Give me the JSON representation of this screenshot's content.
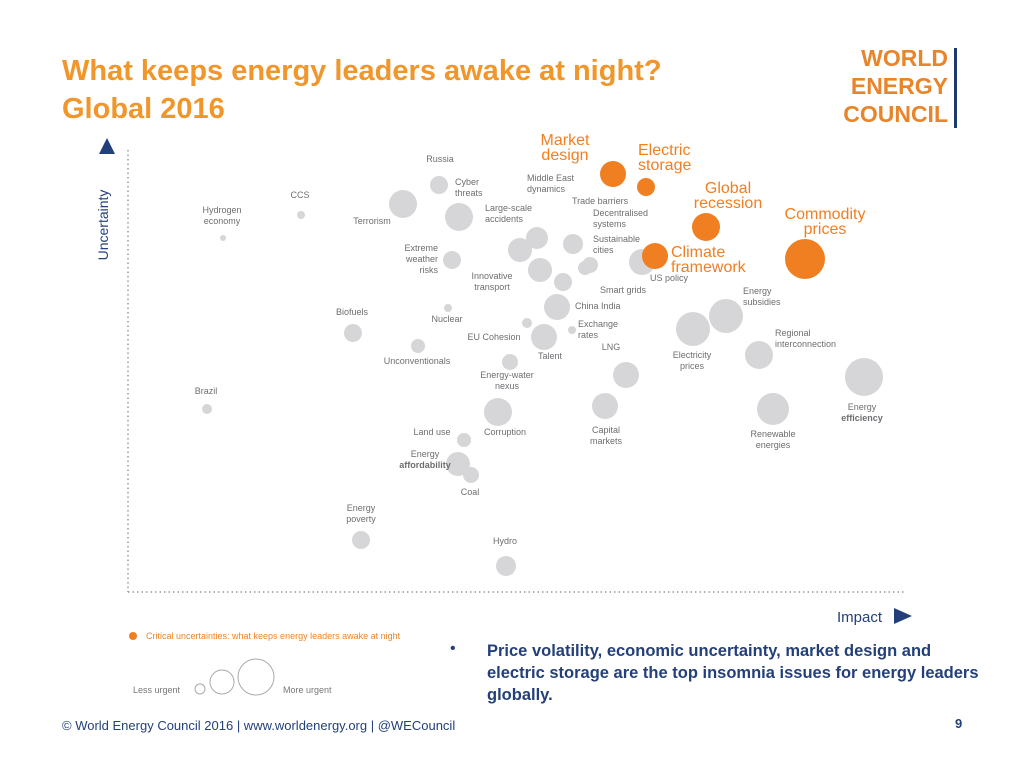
{
  "header": {
    "title_lines": [
      "What keeps energy leaders awake at night?",
      "Global 2016"
    ]
  },
  "logo": [
    "WORLD",
    "ENERGY",
    "COUNCIL"
  ],
  "axes": {
    "y": "Uncertainty",
    "x": "Impact"
  },
  "issues": [
    {
      "label": [
        "Russia"
      ]
    },
    {
      "label": [
        "Cyber",
        "threats"
      ]
    },
    {
      "label": [
        "CCS"
      ]
    },
    {
      "label": [
        "Hydrogen",
        "economy"
      ]
    },
    {
      "label": [
        "Terrorism"
      ]
    },
    {
      "label": [
        "Middle East",
        "dynamics"
      ]
    },
    {
      "label": [
        "Large-scale",
        "accidents"
      ]
    },
    {
      "label": [
        "Trade barriers"
      ]
    },
    {
      "label": [
        "Decentralised",
        "systems"
      ]
    },
    {
      "label": [
        "Sustainable",
        "cities"
      ]
    },
    {
      "label": [
        "Extreme",
        "weather",
        "risks"
      ]
    },
    {
      "label": [
        "Innovative",
        "transport"
      ]
    },
    {
      "label": [
        "Smart grids"
      ]
    },
    {
      "label": [
        "US policy"
      ]
    },
    {
      "label": [
        "China India"
      ]
    },
    {
      "label": [
        "Biofuels"
      ]
    },
    {
      "label": [
        "Nuclear"
      ]
    },
    {
      "label": [
        "EU Cohesion"
      ]
    },
    {
      "label": [
        "Exchange",
        "rates"
      ]
    },
    {
      "label": [
        "Unconventionals"
      ]
    },
    {
      "label": [
        "Talent"
      ]
    },
    {
      "label": [
        "Energy-water",
        "nexus"
      ]
    },
    {
      "label": [
        "LNG"
      ]
    },
    {
      "label": [
        "Electricity",
        "prices"
      ]
    },
    {
      "label": [
        "Energy",
        "subsidies"
      ]
    },
    {
      "label": [
        "Regional",
        "interconnection"
      ]
    },
    {
      "label": [
        "Energy",
        "efficiency"
      ]
    },
    {
      "label": [
        "Brazil"
      ]
    },
    {
      "label": [
        "Corruption"
      ]
    },
    {
      "label": [
        "Capital",
        "markets"
      ]
    },
    {
      "label": [
        "Renewable",
        "energies"
      ]
    },
    {
      "label": [
        "Land use"
      ]
    },
    {
      "label": [
        "Energy",
        "affordability"
      ]
    },
    {
      "label": [
        "Coal"
      ]
    },
    {
      "label": [
        "Energy",
        "poverty"
      ]
    },
    {
      "label": [
        "Hydro"
      ]
    },
    {
      "label": [
        "Market",
        "design"
      ],
      "critical": true
    },
    {
      "label": [
        "Electric",
        "storage"
      ],
      "critical": true
    },
    {
      "label": [
        "Global",
        "recession"
      ],
      "critical": true
    },
    {
      "label": [
        "Commodity",
        "prices"
      ],
      "critical": true
    },
    {
      "label": [
        "Climate",
        "framework"
      ],
      "critical": true
    }
  ],
  "legend": {
    "critical": "Critical uncertainties: what keeps energy leaders awake at night",
    "less": "Less urgent",
    "more": "More urgent"
  },
  "bullet": "Price volatility, economic uncertainty, market design and electric storage are the top insomnia issues for energy leaders globally.",
  "footer": "© World Energy Council 2016 | www.worldenergy.org | @WECouncil",
  "page": "9"
}
